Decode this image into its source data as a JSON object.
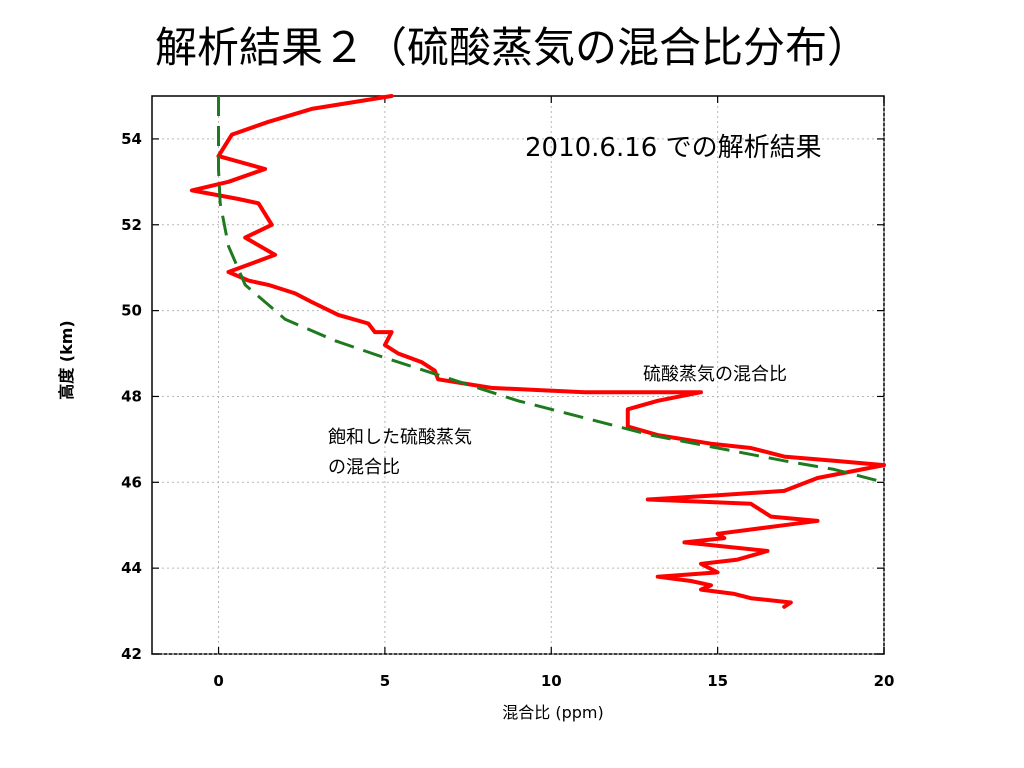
{
  "slide": {
    "title": "解析結果２（硫酸蒸気の混合比分布）"
  },
  "chart_data": {
    "type": "line",
    "xlabel": "混合比 (ppm)",
    "ylabel": "高度 (km)",
    "xlim": [
      -2,
      20
    ],
    "ylim": [
      42,
      55
    ],
    "x_ticks": [
      0,
      5,
      10,
      15,
      20
    ],
    "y_ticks": [
      42,
      44,
      46,
      48,
      50,
      52,
      54
    ],
    "grid": true,
    "annotations": [
      {
        "text": "2010.6.16 での解析結果"
      },
      {
        "text": "硫酸蒸気の混合比"
      },
      {
        "text": "飽和した硫酸蒸気"
      },
      {
        "text": "の混合比"
      }
    ],
    "series": [
      {
        "color": "#ff0000",
        "style": "solid",
        "points": [
          [
            5.2,
            55.0
          ],
          [
            2.8,
            54.7
          ],
          [
            1.5,
            54.4
          ],
          [
            0.4,
            54.1
          ],
          [
            0.0,
            53.6
          ],
          [
            1.4,
            53.3
          ],
          [
            0.3,
            53.0
          ],
          [
            -0.8,
            52.8
          ],
          [
            0.6,
            52.6
          ],
          [
            1.2,
            52.5
          ],
          [
            1.6,
            52.0
          ],
          [
            0.8,
            51.7
          ],
          [
            1.7,
            51.3
          ],
          [
            0.3,
            50.9
          ],
          [
            0.9,
            50.7
          ],
          [
            1.5,
            50.6
          ],
          [
            2.3,
            50.4
          ],
          [
            2.8,
            50.2
          ],
          [
            3.6,
            49.9
          ],
          [
            4.5,
            49.7
          ],
          [
            4.7,
            49.5
          ],
          [
            5.2,
            49.5
          ],
          [
            5.0,
            49.2
          ],
          [
            5.4,
            49.0
          ],
          [
            6.1,
            48.8
          ],
          [
            6.5,
            48.6
          ],
          [
            6.6,
            48.4
          ],
          [
            8.2,
            48.2
          ],
          [
            11.0,
            48.1
          ],
          [
            14.5,
            48.1
          ],
          [
            13.2,
            47.9
          ],
          [
            12.3,
            47.7
          ],
          [
            12.3,
            47.3
          ],
          [
            13.2,
            47.1
          ],
          [
            14.8,
            46.9
          ],
          [
            16.0,
            46.8
          ],
          [
            17.0,
            46.6
          ],
          [
            18.5,
            46.5
          ],
          [
            20.0,
            46.4
          ],
          [
            18.0,
            46.1
          ],
          [
            17.0,
            45.8
          ],
          [
            15.0,
            45.7
          ],
          [
            12.9,
            45.6
          ],
          [
            16.0,
            45.5
          ],
          [
            16.6,
            45.2
          ],
          [
            18.0,
            45.1
          ],
          [
            17.0,
            45.0
          ],
          [
            16.0,
            44.9
          ],
          [
            15.0,
            44.8
          ],
          [
            15.2,
            44.7
          ],
          [
            14.0,
            44.6
          ],
          [
            16.5,
            44.4
          ],
          [
            15.6,
            44.2
          ],
          [
            14.5,
            44.1
          ],
          [
            15.0,
            43.9
          ],
          [
            13.2,
            43.8
          ],
          [
            14.2,
            43.7
          ],
          [
            14.8,
            43.6
          ],
          [
            14.5,
            43.5
          ],
          [
            15.5,
            43.4
          ],
          [
            16.0,
            43.3
          ],
          [
            17.2,
            43.2
          ],
          [
            17.0,
            43.1
          ]
        ]
      },
      {
        "color": "#1e7a1e",
        "style": "dashed",
        "points": [
          [
            0.0,
            55.0
          ],
          [
            0.0,
            54.0
          ],
          [
            0.0,
            53.3
          ],
          [
            0.05,
            52.5
          ],
          [
            0.3,
            51.5
          ],
          [
            0.8,
            50.6
          ],
          [
            2.0,
            49.8
          ],
          [
            3.5,
            49.3
          ],
          [
            5.0,
            48.9
          ],
          [
            7.0,
            48.4
          ],
          [
            9.0,
            47.9
          ],
          [
            11.0,
            47.5
          ],
          [
            13.0,
            47.1
          ],
          [
            15.0,
            46.8
          ],
          [
            17.0,
            46.5
          ],
          [
            18.5,
            46.3
          ],
          [
            20.0,
            46.0
          ]
        ]
      }
    ]
  }
}
